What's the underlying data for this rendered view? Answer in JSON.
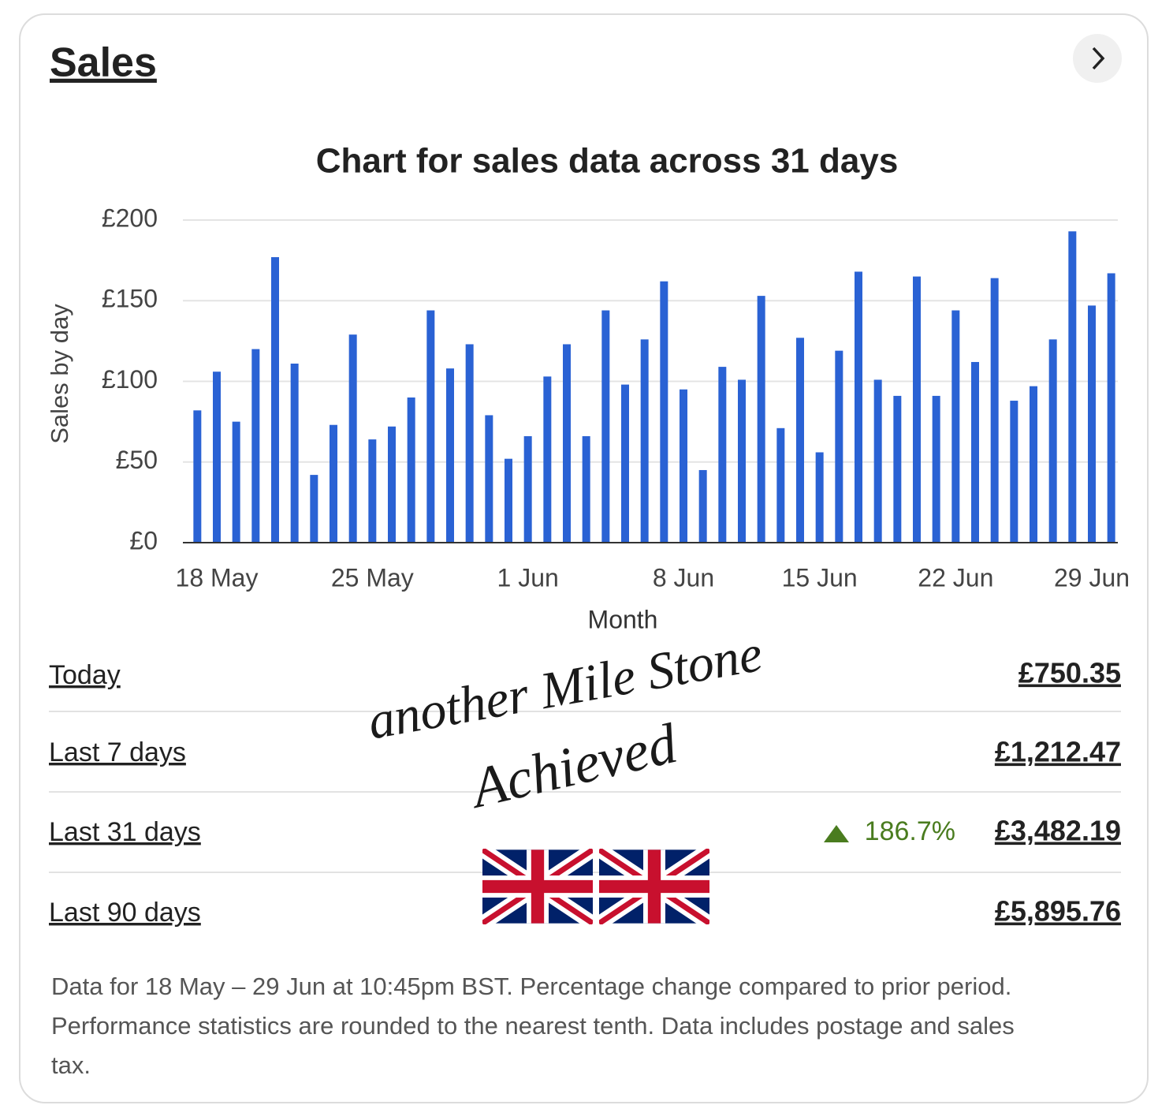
{
  "header": {
    "title": "Sales"
  },
  "chart_data": {
    "type": "bar",
    "title": "Chart for sales data across 31 days",
    "y_label": "Sales by day",
    "x_label": "Month",
    "categories": [
      null,
      "18 May",
      null,
      null,
      null,
      null,
      null,
      null,
      null,
      "25 May",
      null,
      null,
      null,
      null,
      null,
      null,
      null,
      "1 Jun",
      null,
      null,
      null,
      null,
      null,
      null,
      null,
      "8 Jun",
      null,
      null,
      null,
      null,
      null,
      null,
      "15 Jun",
      null,
      null,
      null,
      null,
      null,
      null,
      "22 Jun",
      null,
      null,
      null,
      null,
      null,
      null,
      "29 Jun",
      null
    ],
    "values": [
      82,
      106,
      75,
      120,
      177,
      111,
      42,
      73,
      129,
      64,
      72,
      90,
      144,
      108,
      123,
      79,
      52,
      66,
      103,
      123,
      66,
      144,
      98,
      126,
      162,
      95,
      45,
      109,
      101,
      153,
      71,
      127,
      56,
      119,
      168,
      101,
      91,
      165,
      91,
      144,
      112,
      164,
      88,
      97,
      126,
      193,
      147,
      167
    ],
    "color": "#2a62d4",
    "ylim": [
      0,
      200
    ],
    "yticks": [
      {
        "value": 0,
        "label": "£0"
      },
      {
        "value": 50,
        "label": "£50"
      },
      {
        "value": 100,
        "label": "£100"
      },
      {
        "value": 150,
        "label": "£150"
      },
      {
        "value": 200,
        "label": "£200"
      }
    ],
    "grid": true
  },
  "stats": [
    {
      "label": "Today",
      "value": "£750.35"
    },
    {
      "label": "Last 7 days",
      "value": "£1,212.47"
    },
    {
      "label": "Last 31 days",
      "change": "186.7%",
      "value": "£3,482.19"
    },
    {
      "label": "Last 90 days",
      "value": "£5,895.76"
    }
  ],
  "footnote": "Data for 18 May – 29 Jun at 10:45pm BST. Percentage change compared to prior period. Performance statistics are rounded to the nearest tenth. Data includes postage and sales tax.",
  "overlay": {
    "line1": "another Mile Stone",
    "line2": "Achieved"
  }
}
